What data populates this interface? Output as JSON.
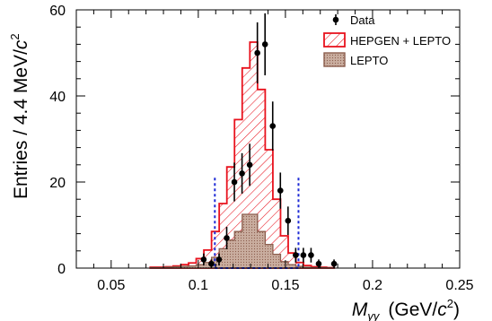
{
  "chart_data": {
    "type": "histogram",
    "xlabel": {
      "main": "M",
      "sub": "γγ",
      "unit_pre": "(GeV/",
      "unit_c": "c",
      "unit_exp": "2",
      "unit_post": ")"
    },
    "ylabel": {
      "main": "Entries / 4.4 MeV/",
      "c": "c",
      "exp": "2"
    },
    "xlim": [
      0.03,
      0.25
    ],
    "ylim": [
      0,
      60
    ],
    "xticks": [
      "0.05",
      "0.1",
      "0.15",
      "0.2",
      "0.25"
    ],
    "yticks": [
      "0",
      "20",
      "40",
      "60"
    ],
    "xtick_values": [
      0.05,
      0.1,
      0.15,
      0.2,
      0.25
    ],
    "ytick_values": [
      0,
      20,
      40,
      60
    ],
    "bin_width": 0.0044,
    "bin_edges": [
      0.0724,
      0.0768,
      0.0812,
      0.0856,
      0.09,
      0.0944,
      0.0988,
      0.1032,
      0.1076,
      0.112,
      0.1164,
      0.1208,
      0.1252,
      0.1296,
      0.134,
      0.1384,
      0.1428,
      0.1472,
      0.1516,
      0.156,
      0.1604,
      0.1648,
      0.1692,
      0.1736,
      0.178
    ],
    "series": [
      {
        "name": "HEPGEN + LEPTO",
        "kind": "histogram",
        "color": "#e8121d",
        "values": [
          0.2,
          0.2,
          0.3,
          0.5,
          0.8,
          1.2,
          2.2,
          4.2,
          8.5,
          15,
          23.5,
          34.5,
          46.5,
          52.5,
          41.5,
          27.5,
          16,
          7.5,
          3.5,
          1.3,
          0.6,
          0.3,
          0.2,
          0.1
        ]
      },
      {
        "name": "LEPTO",
        "kind": "histogram",
        "fill": "#c9ad9f",
        "edge": "#8c5e4e",
        "values": [
          0.1,
          0.1,
          0.2,
          0.3,
          0.4,
          0.5,
          0.8,
          1.3,
          2.5,
          4.5,
          6.5,
          8.5,
          12.5,
          12.5,
          8.5,
          5.5,
          3.2,
          1.5,
          0.8,
          0.4,
          0.2,
          0.1,
          0.1,
          0.05
        ]
      },
      {
        "name": "Data",
        "kind": "points",
        "color": "#000000",
        "points": [
          {
            "x": 0.1031,
            "y": 2,
            "err": 1.4
          },
          {
            "x": 0.1075,
            "y": 1,
            "err": 1.0
          },
          {
            "x": 0.1119,
            "y": 2,
            "err": 1.4
          },
          {
            "x": 0.1163,
            "y": 7,
            "err": 2.6
          },
          {
            "x": 0.1207,
            "y": 20,
            "err": 4.5
          },
          {
            "x": 0.1251,
            "y": 22,
            "err": 4.7
          },
          {
            "x": 0.1295,
            "y": 24,
            "err": 4.9
          },
          {
            "x": 0.1339,
            "y": 50,
            "err": 7.1
          },
          {
            "x": 0.1383,
            "y": 52,
            "err": 7.2
          },
          {
            "x": 0.1427,
            "y": 33,
            "err": 5.7
          },
          {
            "x": 0.1471,
            "y": 18,
            "err": 4.2
          },
          {
            "x": 0.1515,
            "y": 11,
            "err": 3.3
          },
          {
            "x": 0.1559,
            "y": 3,
            "err": 1.7
          },
          {
            "x": 0.1603,
            "y": 3,
            "err": 1.7
          },
          {
            "x": 0.1647,
            "y": 3,
            "err": 1.7
          },
          {
            "x": 0.1691,
            "y": 1,
            "err": 1.0
          },
          {
            "x": 0.1779,
            "y": 1,
            "err": 1.0
          }
        ]
      }
    ],
    "cut_lines": {
      "x": [
        0.1095,
        0.1575
      ],
      "y_top": 21,
      "color": "#1f2bd6"
    },
    "baseline_line": {
      "x_range": [
        0.1095,
        0.1575
      ],
      "color": "#1f2bd6"
    },
    "legend": {
      "position": "top-right",
      "entries": [
        {
          "label": "Data",
          "symbol": "marker"
        },
        {
          "label": "HEPGEN + LEPTO",
          "symbol": "hatched-red"
        },
        {
          "label": "LEPTO",
          "symbol": "dotted-brown"
        }
      ]
    }
  }
}
